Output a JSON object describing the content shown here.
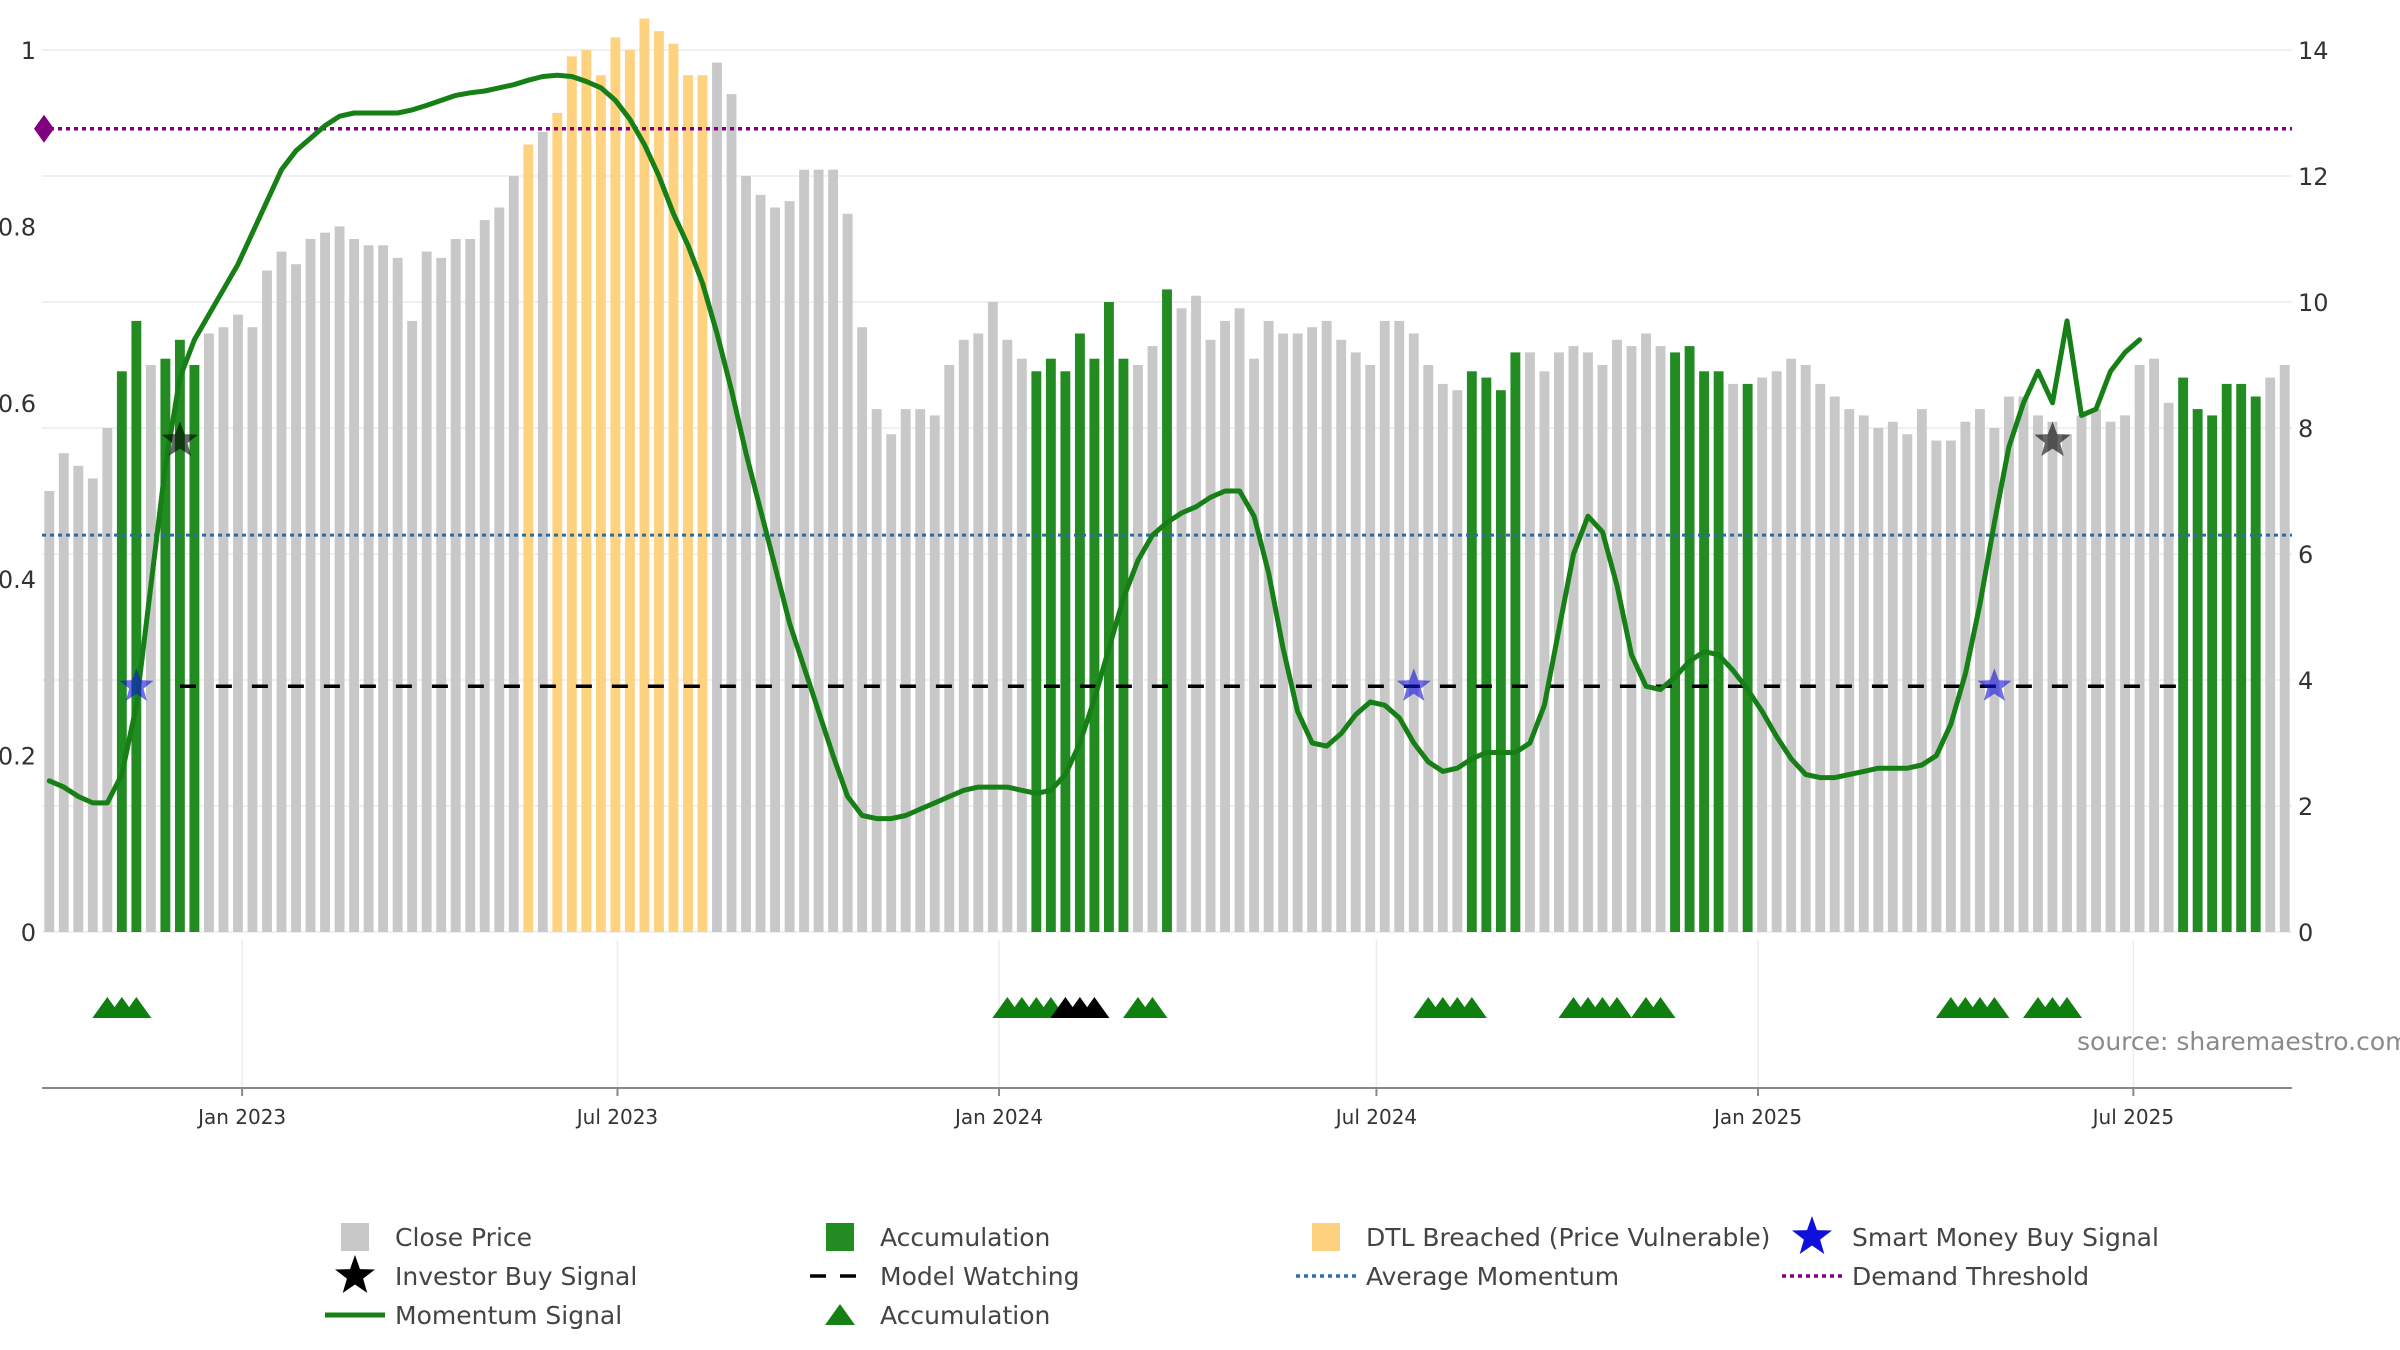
{
  "chart_data": {
    "type": "bar",
    "source": "source: sharemaestro.com",
    "colors": {
      "close_price": "#c8c8c8",
      "accumulation": "#228b22",
      "dtl_breached": "#ffd280",
      "momentum": "#168016",
      "smart_money": "#1010dd",
      "investor_buy": "#000000",
      "model_watching": "#000000",
      "average_momentum": "#2e6da4",
      "demand_threshold": "#800080",
      "grid": "#ececec"
    },
    "left_axis": {
      "range": [
        0,
        1
      ],
      "ticks": [
        "0",
        "0.2",
        "0.4",
        "0.6",
        "0.8",
        "1"
      ]
    },
    "right_axis": {
      "range": [
        0,
        14
      ],
      "ticks": [
        "0",
        "2",
        "4",
        "6",
        "8",
        "10",
        "12",
        "14"
      ]
    },
    "x_axis": {
      "start": "2022-09-30",
      "end": "2025-09-19",
      "step_days": 7,
      "ticks": [
        {
          "date": "2023-01-01",
          "label": "Jan 2023"
        },
        {
          "date": "2023-07-01",
          "label": "Jul 2023"
        },
        {
          "date": "2024-01-01",
          "label": "Jan 2024"
        },
        {
          "date": "2024-07-01",
          "label": "Jul 2024"
        },
        {
          "date": "2025-01-01",
          "label": "Jan 2025"
        },
        {
          "date": "2025-07-01",
          "label": "Jul 2025"
        }
      ]
    },
    "close_price": [
      7.0,
      7.6,
      7.4,
      7.2,
      8.0,
      8.9,
      9.7,
      9.0,
      9.1,
      9.4,
      9.0,
      9.5,
      9.6,
      9.8,
      9.6,
      10.5,
      10.8,
      10.6,
      11.0,
      11.1,
      11.2,
      11.0,
      10.9,
      10.9,
      10.7,
      9.7,
      10.8,
      10.7,
      11.0,
      11.0,
      11.3,
      11.5,
      12.0,
      12.5,
      12.7,
      13.0,
      13.9,
      14.0,
      13.6,
      14.2,
      14.0,
      14.5,
      14.3,
      14.1,
      13.6,
      13.6,
      13.8,
      13.3,
      12.0,
      11.7,
      11.5,
      11.6,
      12.1,
      12.1,
      12.1,
      11.4,
      9.6,
      8.3,
      7.9,
      8.3,
      8.3,
      8.2,
      9.0,
      9.4,
      9.5,
      10.0,
      9.4,
      9.1,
      8.9,
      9.1,
      8.9,
      9.5,
      9.1,
      10.0,
      9.1,
      9.0,
      9.3,
      10.2,
      9.9,
      10.1,
      9.4,
      9.7,
      9.9,
      9.1,
      9.7,
      9.5,
      9.5,
      9.6,
      9.7,
      9.4,
      9.2,
      9.0,
      9.7,
      9.7,
      9.5,
      9.0,
      8.7,
      8.6,
      8.9,
      8.8,
      8.6,
      9.2,
      9.2,
      8.9,
      9.2,
      9.3,
      9.2,
      9.0,
      9.4,
      9.3,
      9.5,
      9.3,
      9.2,
      9.3,
      8.9,
      8.9,
      8.7,
      8.7,
      8.8,
      8.9,
      9.1,
      9.0,
      8.7,
      8.5,
      8.3,
      8.2,
      8.0,
      8.1,
      7.9,
      8.3,
      7.8,
      7.8,
      8.1,
      8.3,
      8.0,
      8.5,
      8.5,
      8.2,
      8.1,
      7.9,
      8.2,
      8.3,
      8.1,
      8.2,
      9.0,
      9.1,
      8.4,
      8.8,
      8.3,
      8.2,
      8.7,
      8.7,
      8.5,
      8.8,
      9.0
    ],
    "bar_status": "CCCCCAACAAACCCCCCCCCCCCCCCCCCCCCCDCDDDDDDDDDDDCCCCCCCCCCCCCCCCCCCCCCAAAAAAACCACCCCCCCCCCCCCCCCCCCCAAAACCCCCCCCCCAAAACACCCCCCCCCCCCCCCCCCCCCCCCCCCCCAAAAAACCAAACCCCCCCCCCCCCCC",
    "momentum_signal": [
      2.4,
      2.3,
      2.15,
      2.05,
      2.05,
      2.5,
      3.6,
      5.5,
      7.4,
      8.8,
      9.4,
      9.8,
      10.2,
      10.6,
      11.1,
      11.6,
      12.1,
      12.4,
      12.6,
      12.8,
      12.95,
      13.0,
      13.0,
      13.0,
      13.0,
      13.05,
      13.12,
      13.2,
      13.28,
      13.32,
      13.35,
      13.4,
      13.45,
      13.52,
      13.58,
      13.6,
      13.58,
      13.5,
      13.4,
      13.2,
      12.9,
      12.5,
      12.0,
      11.4,
      10.9,
      10.3,
      9.5,
      8.6,
      7.6,
      6.7,
      5.8,
      4.9,
      4.2,
      3.5,
      2.8,
      2.15,
      1.85,
      1.8,
      1.8,
      1.85,
      1.95,
      2.05,
      2.15,
      2.25,
      2.3,
      2.3,
      2.3,
      2.25,
      2.2,
      2.25,
      2.5,
      3.0,
      3.7,
      4.5,
      5.3,
      5.9,
      6.3,
      6.5,
      6.65,
      6.75,
      6.9,
      7.0,
      7.0,
      6.6,
      5.7,
      4.5,
      3.5,
      3.0,
      2.95,
      3.15,
      3.45,
      3.65,
      3.6,
      3.4,
      3.0,
      2.7,
      2.55,
      2.6,
      2.75,
      2.85,
      2.85,
      2.85,
      3.0,
      3.6,
      4.8,
      6.0,
      6.6,
      6.35,
      5.5,
      4.4,
      3.9,
      3.85,
      4.05,
      4.3,
      4.45,
      4.4,
      4.15,
      3.85,
      3.5,
      3.1,
      2.75,
      2.5,
      2.45,
      2.45,
      2.5,
      2.55,
      2.6,
      2.6,
      2.6,
      2.65,
      2.8,
      3.3,
      4.1,
      5.2,
      6.5,
      7.7,
      8.4,
      8.9,
      8.4,
      9.7,
      8.2,
      8.3,
      8.9,
      9.2,
      9.4
    ],
    "smart_money_buy_signal": [
      {
        "index": 6,
        "value": 3.9
      },
      {
        "index": 94,
        "value": 3.9
      },
      {
        "index": 134,
        "value": 3.9
      }
    ],
    "investor_buy_signal": [
      {
        "index": 9,
        "value": 7.8
      },
      {
        "index": 138,
        "value": 7.8
      }
    ],
    "model_watching_range": [
      9,
      147
    ],
    "model_watching_value": 3.9,
    "average_momentum": 6.3,
    "demand_threshold": 12.75,
    "accumulation_markers": [
      {
        "index": 4,
        "color": "green"
      },
      {
        "index": 5,
        "color": "green"
      },
      {
        "index": 6,
        "color": "green"
      },
      {
        "index": 66,
        "color": "green"
      },
      {
        "index": 67,
        "color": "green"
      },
      {
        "index": 68,
        "color": "green"
      },
      {
        "index": 69,
        "color": "green"
      },
      {
        "index": 70,
        "color": "black"
      },
      {
        "index": 71,
        "color": "black"
      },
      {
        "index": 72,
        "color": "black"
      },
      {
        "index": 75,
        "color": "green"
      },
      {
        "index": 76,
        "color": "green"
      },
      {
        "index": 95,
        "color": "green"
      },
      {
        "index": 96,
        "color": "green"
      },
      {
        "index": 97,
        "color": "green"
      },
      {
        "index": 98,
        "color": "green"
      },
      {
        "index": 105,
        "color": "green"
      },
      {
        "index": 106,
        "color": "green"
      },
      {
        "index": 107,
        "color": "green"
      },
      {
        "index": 108,
        "color": "green"
      },
      {
        "index": 110,
        "color": "green"
      },
      {
        "index": 111,
        "color": "green"
      },
      {
        "index": 131,
        "color": "green"
      },
      {
        "index": 132,
        "color": "green"
      },
      {
        "index": 133,
        "color": "green"
      },
      {
        "index": 134,
        "color": "green"
      },
      {
        "index": 137,
        "color": "green"
      },
      {
        "index": 138,
        "color": "green"
      },
      {
        "index": 139,
        "color": "green"
      }
    ],
    "legend": [
      {
        "key": "close_price",
        "marker": "square",
        "label": "Close Price"
      },
      {
        "key": "accumulation",
        "marker": "square",
        "label": "Accumulation"
      },
      {
        "key": "dtl_breached",
        "marker": "square",
        "label": "DTL Breached (Price Vulnerable)"
      },
      {
        "key": "smart_money",
        "marker": "star",
        "label": "Smart Money Buy Signal"
      },
      {
        "key": "investor_buy",
        "marker": "star",
        "label": "Investor Buy Signal"
      },
      {
        "key": "model_watching",
        "marker": "dash",
        "label": "Model Watching"
      },
      {
        "key": "average_momentum",
        "marker": "dot",
        "label": "Average Momentum"
      },
      {
        "key": "demand_threshold",
        "marker": "dot",
        "label": "Demand Threshold"
      },
      {
        "key": "momentum",
        "marker": "line",
        "label": "Momentum Signal"
      },
      {
        "key": "accumulation",
        "marker": "triangle",
        "label": "Accumulation"
      }
    ]
  }
}
